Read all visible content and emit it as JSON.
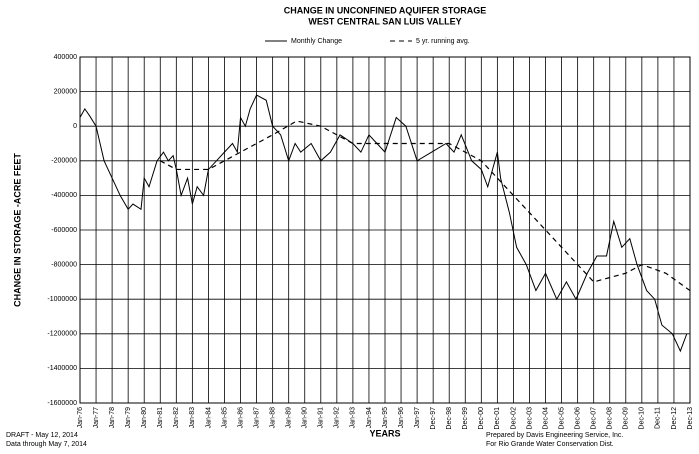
{
  "chart_data": {
    "type": "line",
    "title": "CHANGE IN UNCONFINED AQUIFER STORAGE",
    "subtitle": "WEST CENTRAL SAN LUIS VALLEY",
    "y_label": "CHANGE IN STORAGE -ACRE FEET",
    "x_label": "YEARS",
    "notes": [
      "DRAFT - May 12, 2014",
      "Data through May 7, 2014",
      "Prepared by Davis Engineering Service, Inc.",
      "For Rio Grande Water Conservation Dist."
    ],
    "xlim": [
      1976,
      2014
    ],
    "ylim": [
      -1600000,
      400000
    ],
    "yticks": [
      400000,
      200000,
      0,
      -200000,
      -400000,
      -600000,
      -800000,
      -1000000,
      -1200000,
      -1400000,
      -1600000
    ],
    "xticks": [
      {
        "value": 1976,
        "label": "Jan-76"
      },
      {
        "value": 1977,
        "label": "Jan-77"
      },
      {
        "value": 1978,
        "label": "Jan-78"
      },
      {
        "value": 1979,
        "label": "Jan-79"
      },
      {
        "value": 1980,
        "label": "Jan-80"
      },
      {
        "value": 1981,
        "label": "Jan-81"
      },
      {
        "value": 1982,
        "label": "Jan-82"
      },
      {
        "value": 1983,
        "label": "Jan-83"
      },
      {
        "value": 1984,
        "label": "Jan-84"
      },
      {
        "value": 1985,
        "label": "Jan-85"
      },
      {
        "value": 1986,
        "label": "Jan-86"
      },
      {
        "value": 1987,
        "label": "Jan-87"
      },
      {
        "value": 1988,
        "label": "Jan-88"
      },
      {
        "value": 1989,
        "label": "Jan-89"
      },
      {
        "value": 1990,
        "label": "Jan-90"
      },
      {
        "value": 1991,
        "label": "Jan-91"
      },
      {
        "value": 1992,
        "label": "Jan-92"
      },
      {
        "value": 1993,
        "label": "Jan-93"
      },
      {
        "value": 1994,
        "label": "Jan-94"
      },
      {
        "value": 1995,
        "label": "Jan-95"
      },
      {
        "value": 1996,
        "label": "Jan-96"
      },
      {
        "value": 1997,
        "label": "Jan-97"
      },
      {
        "value": 1998,
        "label": "Dec-97"
      },
      {
        "value": 1999,
        "label": "Dec-98"
      },
      {
        "value": 2000,
        "label": "Dec-99"
      },
      {
        "value": 2001,
        "label": "Dec-00"
      },
      {
        "value": 2002,
        "label": "Dec-01"
      },
      {
        "value": 2003,
        "label": "Dec-02"
      },
      {
        "value": 2004,
        "label": "Dec-03"
      },
      {
        "value": 2005,
        "label": "Dec-04"
      },
      {
        "value": 2006,
        "label": "Dec-05"
      },
      {
        "value": 2007,
        "label": "Dec-06"
      },
      {
        "value": 2008,
        "label": "Dec-07"
      },
      {
        "value": 2009,
        "label": "Dec-08"
      },
      {
        "value": 2010,
        "label": "Dec-09"
      },
      {
        "value": 2011,
        "label": "Dec-10"
      },
      {
        "value": 2012,
        "label": "Dec-11"
      },
      {
        "value": 2013,
        "label": "Dec-12"
      },
      {
        "value": 2014,
        "label": "Dec-13"
      }
    ],
    "grid": true,
    "series": [
      {
        "name": "Monthly Change",
        "color": "#000000",
        "dash": false,
        "x": [
          1976,
          1976.3,
          1976.6,
          1977,
          1977.5,
          1978,
          1978.5,
          1979,
          1979.3,
          1979.8,
          1980,
          1980.3,
          1980.8,
          1981.2,
          1981.5,
          1981.8,
          1982,
          1982.3,
          1982.7,
          1983,
          1983.3,
          1983.7,
          1984,
          1984.5,
          1985,
          1985.5,
          1985.8,
          1986,
          1986.3,
          1986.6,
          1987,
          1987.6,
          1988,
          1988.5,
          1989,
          1989.4,
          1989.75,
          1990.4,
          1991,
          1991.6,
          1992.2,
          1993,
          1993.5,
          1994,
          1994.5,
          1995,
          1995.7,
          1996.3,
          1997,
          1997.9,
          1998.8,
          1999.3,
          1999.75,
          2000.4,
          2001,
          2001.4,
          2002,
          2002.2,
          2002.75,
          2003.2,
          2003.8,
          2004.4,
          2005,
          2005.7,
          2006.3,
          2006.9,
          2007.6,
          2008.2,
          2008.8,
          2009.25,
          2009.75,
          2010.25,
          2010.7,
          2011.3,
          2011.8,
          2012.25,
          2012.9,
          2013.4,
          2013.8
        ],
        "values": [
          50000,
          100000,
          60000,
          0,
          -200000,
          -300000,
          -400000,
          -480000,
          -450000,
          -480000,
          -300000,
          -350000,
          -200000,
          -150000,
          -200000,
          -170000,
          -250000,
          -400000,
          -300000,
          -450000,
          -350000,
          -400000,
          -250000,
          -200000,
          -150000,
          -100000,
          -150000,
          50000,
          0,
          100000,
          180000,
          150000,
          0,
          -50000,
          -200000,
          -100000,
          -150000,
          -100000,
          -200000,
          -150000,
          -50000,
          -100000,
          -150000,
          -50000,
          -100000,
          -150000,
          50000,
          0,
          -200000,
          -150000,
          -100000,
          -150000,
          -50000,
          -200000,
          -250000,
          -350000,
          -150000,
          -300000,
          -500000,
          -700000,
          -800000,
          -950000,
          -850000,
          -1000000,
          -900000,
          -1000000,
          -850000,
          -750000,
          -750000,
          -550000,
          -700000,
          -650000,
          -800000,
          -950000,
          -1000000,
          -1150000,
          -1200000,
          -1300000,
          -1200000
        ]
      },
      {
        "name": "5 yr. running avg.",
        "color": "#000000",
        "dash": true,
        "x": [
          1981,
          1982,
          1984,
          1986,
          1988,
          1989.5,
          1991,
          1993,
          1996,
          1999,
          2001,
          2003,
          2005,
          2007,
          2008,
          2010,
          2011,
          2012.5,
          2014
        ],
        "values": [
          -200000,
          -250000,
          -250000,
          -150000,
          -50000,
          30000,
          0,
          -100000,
          -100000,
          -100000,
          -200000,
          -400000,
          -600000,
          -800000,
          -900000,
          -850000,
          -800000,
          -850000,
          -950000
        ]
      }
    ]
  }
}
